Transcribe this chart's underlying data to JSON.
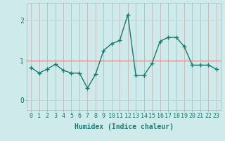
{
  "x": [
    0,
    1,
    2,
    3,
    4,
    5,
    6,
    7,
    8,
    9,
    10,
    11,
    12,
    13,
    14,
    15,
    16,
    17,
    18,
    19,
    20,
    21,
    22,
    23
  ],
  "y": [
    0.82,
    0.68,
    0.78,
    0.9,
    0.75,
    0.68,
    0.68,
    0.3,
    0.65,
    1.25,
    1.42,
    1.5,
    2.15,
    0.62,
    0.62,
    0.92,
    1.48,
    1.58,
    1.58,
    1.35,
    0.88,
    0.88,
    0.88,
    0.78
  ],
  "line_color": "#1a7a6e",
  "marker": "+",
  "marker_size": 4,
  "linewidth": 1.0,
  "background_color": "#ceeaea",
  "grid_v_color": "#c8d8d8",
  "grid_h_color": "#b8d8d8",
  "hline_color": "#d08080",
  "xlabel": "Humidex (Indice chaleur)",
  "xlabel_fontsize": 7,
  "yticks": [
    0,
    1,
    2
  ],
  "xlim": [
    -0.5,
    23.5
  ],
  "ylim": [
    -0.25,
    2.45
  ],
  "hline_y": 1.0,
  "tick_fontsize": 6,
  "tick_color": "#1a7a6e"
}
